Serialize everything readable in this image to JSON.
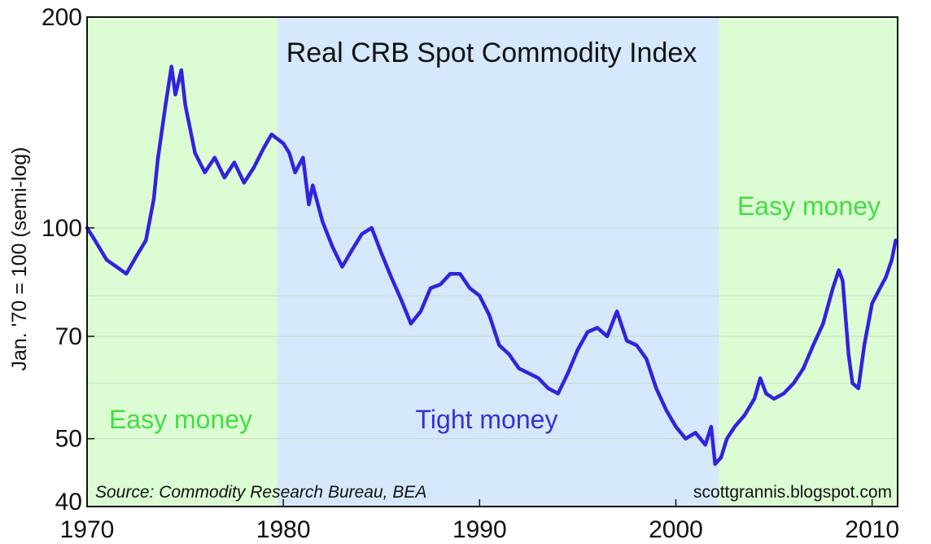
{
  "chart_data": {
    "type": "line",
    "title": "Real CRB Spot Commodity Index",
    "ylabel": "Jan. '70 = 100 (semi-log)",
    "xlabel": "",
    "yscale": "log",
    "xlim": [
      1970,
      2011.3
    ],
    "ylim": [
      40,
      200
    ],
    "x_ticks": [
      1970,
      1980,
      1990,
      2000,
      2010
    ],
    "x_tick_labels": [
      "1970",
      "1980",
      "1990",
      "2000",
      "2010"
    ],
    "y_ticks": [
      40,
      50,
      70,
      100,
      200
    ],
    "y_tick_labels": [
      "40",
      "50",
      "70",
      "100",
      "200"
    ],
    "y_gridlines": [
      50,
      60,
      70,
      80,
      100
    ],
    "regions": [
      {
        "label": "Easy money",
        "from": 1970,
        "to": 1979.7,
        "fill": "#dcfcd4",
        "text_color": "#44dd44"
      },
      {
        "label": "Tight money",
        "from": 1979.7,
        "to": 2002.2,
        "fill": "#d6e8fb",
        "text_color": "#3a2fd8"
      },
      {
        "label": "Easy money",
        "from": 2002.2,
        "to": 2011.3,
        "fill": "#dcfcd4",
        "text_color": "#44dd44"
      }
    ],
    "series": [
      {
        "name": "Real CRB Spot Commodity Index",
        "color": "#3322dd",
        "x": [
          1970.0,
          1970.4,
          1971.0,
          1971.5,
          1972.0,
          1972.5,
          1973.0,
          1973.4,
          1973.6,
          1974.0,
          1974.3,
          1974.5,
          1974.8,
          1975.0,
          1975.5,
          1976.0,
          1976.5,
          1977.0,
          1977.5,
          1978.0,
          1978.5,
          1979.0,
          1979.4,
          1980.0,
          1980.3,
          1980.6,
          1981.0,
          1981.3,
          1981.5,
          1982.0,
          1982.5,
          1983.0,
          1983.5,
          1984.0,
          1984.5,
          1985.0,
          1985.5,
          1986.0,
          1986.5,
          1987.0,
          1987.5,
          1988.0,
          1988.5,
          1989.0,
          1989.5,
          1990.0,
          1990.5,
          1991.0,
          1991.5,
          1992.0,
          1992.5,
          1993.0,
          1993.5,
          1994.0,
          1994.5,
          1995.0,
          1995.5,
          1996.0,
          1996.5,
          1997.0,
          1997.5,
          1998.0,
          1998.5,
          1999.0,
          1999.5,
          2000.0,
          2000.5,
          2001.0,
          2001.5,
          2001.8,
          2002.0,
          2002.3,
          2002.6,
          2003.0,
          2003.5,
          2004.0,
          2004.3,
          2004.6,
          2005.0,
          2005.5,
          2006.0,
          2006.5,
          2007.0,
          2007.5,
          2008.0,
          2008.3,
          2008.5,
          2008.8,
          2009.0,
          2009.3,
          2009.6,
          2010.0,
          2010.4,
          2010.7,
          2011.0,
          2011.2
        ],
        "values": [
          100,
          96,
          90,
          88,
          86,
          91,
          96,
          110,
          125,
          150,
          170,
          155,
          168,
          150,
          128,
          120,
          126,
          118,
          124,
          116,
          122,
          130,
          136,
          132,
          128,
          120,
          126,
          108,
          115,
          102,
          94,
          88,
          93,
          98,
          100,
          92,
          85,
          79,
          73,
          76,
          82,
          83,
          86,
          86,
          82,
          80,
          75,
          68,
          66,
          63,
          62,
          61,
          59,
          58,
          62,
          67,
          71,
          72,
          70,
          76,
          69,
          68,
          65,
          59,
          55,
          52,
          50,
          51,
          49,
          52,
          46,
          47,
          50,
          52,
          54,
          57,
          61,
          58,
          57,
          58,
          60,
          63,
          68,
          73,
          82,
          87,
          84,
          66,
          60,
          59,
          68,
          78,
          82,
          85,
          90,
          96
        ]
      }
    ],
    "source": "Source: Commodity Research Bureau, BEA",
    "credit": "scottgrannis.blogspot.com"
  }
}
